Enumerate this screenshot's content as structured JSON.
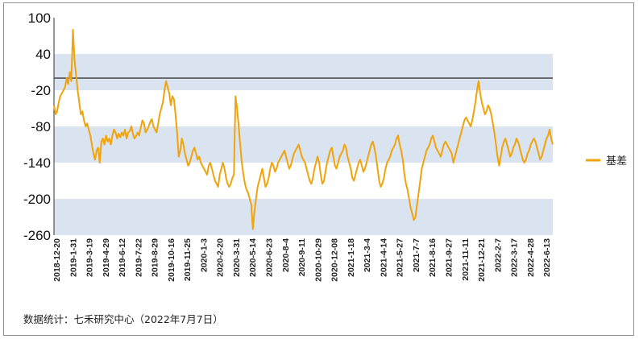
{
  "chart_data": {
    "type": "line",
    "ylim": [
      -260,
      100
    ],
    "yticks": [
      100,
      40,
      -20,
      -80,
      -140,
      -200,
      -260
    ],
    "bands": [
      [
        -20,
        40
      ],
      [
        -140,
        -80
      ],
      [
        -260,
        -200
      ]
    ],
    "reference_line": 0,
    "x_tick_labels": [
      "2018-12-20",
      "2019-1-31",
      "2019-3-19",
      "2019-4-29",
      "2019-6-12",
      "2019-7-22",
      "2019-8-29",
      "2019-10-16",
      "2019-11-25",
      "2020-1-3",
      "2020-2-20",
      "2020-3-31",
      "2020-5-14",
      "2020-6-23",
      "2020-8-4",
      "2020-9-11",
      "2020-10-29",
      "2020-12-08",
      "2021-1-18",
      "2021-3-4",
      "2021-4-14",
      "2021-5-27",
      "2021-7-7",
      "2021-8-16",
      "2021-9-27",
      "2021-11-11",
      "2021-12-21",
      "2022-2-7",
      "2022-3-17",
      "2022-4-28",
      "2022-6-13"
    ],
    "legend_position": "right",
    "colors": {
      "line": "#f0a30a",
      "band": "#dae4f0",
      "reference": "#444444"
    },
    "series": [
      {
        "name": "基差",
        "values": [
          -45,
          -60,
          -55,
          -40,
          -30,
          -25,
          -20,
          -15,
          0,
          -10,
          10,
          -5,
          80,
          30,
          5,
          -20,
          -40,
          -60,
          -55,
          -70,
          -80,
          -75,
          -85,
          -95,
          -110,
          -125,
          -135,
          -120,
          -115,
          -140,
          -105,
          -100,
          -110,
          -95,
          -105,
          -100,
          -110,
          -95,
          -85,
          -90,
          -100,
          -92,
          -98,
          -90,
          -95,
          -85,
          -100,
          -90,
          -88,
          -80,
          -92,
          -100,
          -96,
          -90,
          -95,
          -82,
          -70,
          -75,
          -90,
          -86,
          -80,
          -72,
          -68,
          -80,
          -85,
          -90,
          -75,
          -60,
          -50,
          -40,
          -20,
          -5,
          -15,
          -25,
          -45,
          -30,
          -35,
          -60,
          -90,
          -130,
          -120,
          -100,
          -110,
          -125,
          -135,
          -145,
          -140,
          -130,
          -120,
          -115,
          -125,
          -135,
          -130,
          -140,
          -145,
          -150,
          -155,
          -160,
          -145,
          -140,
          -150,
          -160,
          -170,
          -175,
          -180,
          -160,
          -150,
          -140,
          -150,
          -165,
          -175,
          -180,
          -175,
          -165,
          -160,
          -30,
          -50,
          -80,
          -110,
          -140,
          -160,
          -175,
          -185,
          -190,
          -200,
          -210,
          -250,
          -220,
          -200,
          -180,
          -170,
          -160,
          -150,
          -165,
          -180,
          -175,
          -165,
          -150,
          -140,
          -145,
          -155,
          -150,
          -140,
          -135,
          -130,
          -125,
          -120,
          -130,
          -140,
          -150,
          -145,
          -135,
          -125,
          -120,
          -115,
          -110,
          -120,
          -130,
          -135,
          -140,
          -150,
          -160,
          -170,
          -175,
          -165,
          -150,
          -140,
          -130,
          -140,
          -160,
          -175,
          -170,
          -155,
          -140,
          -130,
          -120,
          -115,
          -130,
          -145,
          -150,
          -140,
          -130,
          -125,
          -120,
          -110,
          -115,
          -130,
          -140,
          -150,
          -165,
          -170,
          -160,
          -150,
          -140,
          -135,
          -145,
          -155,
          -150,
          -140,
          -130,
          -120,
          -110,
          -105,
          -115,
          -130,
          -150,
          -170,
          -180,
          -175,
          -165,
          -150,
          -140,
          -135,
          -130,
          -120,
          -115,
          -110,
          -100,
          -95,
          -110,
          -120,
          -135,
          -160,
          -175,
          -185,
          -200,
          -215,
          -225,
          -235,
          -230,
          -210,
          -190,
          -170,
          -150,
          -140,
          -130,
          -120,
          -115,
          -110,
          -100,
          -95,
          -105,
          -115,
          -120,
          -125,
          -130,
          -120,
          -110,
          -105,
          -110,
          -115,
          -120,
          -125,
          -140,
          -130,
          -120,
          -110,
          -100,
          -90,
          -80,
          -70,
          -65,
          -70,
          -75,
          -80,
          -70,
          -55,
          -40,
          -20,
          -5,
          -25,
          -40,
          -50,
          -60,
          -55,
          -45,
          -50,
          -60,
          -75,
          -90,
          -110,
          -130,
          -145,
          -130,
          -115,
          -105,
          -100,
          -110,
          -120,
          -130,
          -125,
          -115,
          -110,
          -100,
          -105,
          -115,
          -125,
          -135,
          -140,
          -135,
          -125,
          -120,
          -110,
          -105,
          -100,
          -105,
          -115,
          -125,
          -135,
          -130,
          -120,
          -110,
          -100,
          -95,
          -85,
          -100,
          -110
        ]
      }
    ]
  },
  "legend": {
    "label": "基差"
  },
  "source_note": "数据统计：七禾研究中心（2022年7月7日）"
}
